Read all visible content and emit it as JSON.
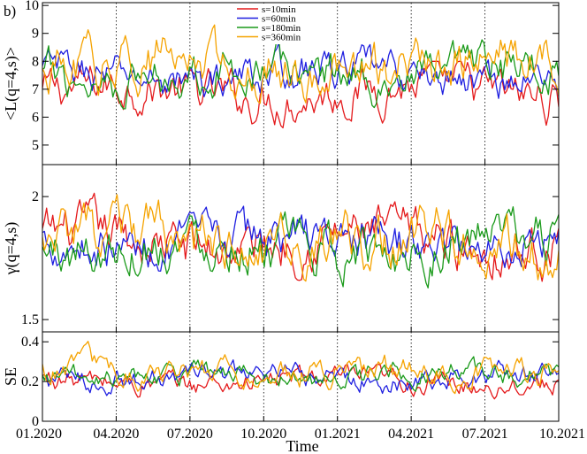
{
  "chart_data": {
    "type": "line",
    "panel_letter": "b)",
    "xlabel": "Time",
    "x_ticks": [
      "01.2020",
      "04.2020",
      "07.2020",
      "10.2020",
      "01.2021",
      "04.2021",
      "07.2021",
      "10.2021"
    ],
    "x_range_months": [
      0,
      21
    ],
    "vertical_markers_months": [
      3,
      6,
      9,
      12,
      15,
      18
    ],
    "legend": {
      "placement": "top-center",
      "entries": [
        {
          "label": "s=10min",
          "color": "#e41a1c"
        },
        {
          "label": "s=60min",
          "color": "#1f1fe0"
        },
        {
          "label": "s=180min",
          "color": "#1a9a1a"
        },
        {
          "label": "s=360min",
          "color": "#f5a300"
        }
      ]
    },
    "panels": [
      {
        "name": "L",
        "ylabel": "<L(q=4,s)>",
        "ylim": [
          4.3,
          10.1
        ],
        "yticks": [
          "5",
          "6",
          "7",
          "8",
          "9",
          "10"
        ],
        "ytick_values": [
          5,
          6,
          7,
          8,
          9,
          10
        ],
        "series_summary": [
          {
            "name": "s=10min",
            "mean": 6.9,
            "amp": 0.7,
            "min": 5.6,
            "max": 8.0
          },
          {
            "name": "s=60min",
            "mean": 7.5,
            "amp": 0.6,
            "min": 6.3,
            "max": 8.8
          },
          {
            "name": "s=180min",
            "mean": 7.6,
            "amp": 0.7,
            "min": 6.3,
            "max": 10.0
          },
          {
            "name": "s=360min",
            "mean": 7.8,
            "amp": 0.8,
            "min": 6.2,
            "max": 9.8
          }
        ]
      },
      {
        "name": "gamma",
        "ylabel": "γ(q=4,s)",
        "ylim": [
          1.45,
          2.13
        ],
        "yticks": [
          "1.5",
          "2"
        ],
        "ytick_values": [
          1.5,
          2.0
        ],
        "series_summary": [
          {
            "name": "s=10min",
            "mean": 1.82,
            "amp": 0.09,
            "min": 1.49,
            "max": 2.07
          },
          {
            "name": "s=60min",
            "mean": 1.82,
            "amp": 0.08,
            "min": 1.6,
            "max": 2.07
          },
          {
            "name": "s=180min",
            "mean": 1.8,
            "amp": 0.09,
            "min": 1.55,
            "max": 2.04
          },
          {
            "name": "s=360min",
            "mean": 1.81,
            "amp": 0.1,
            "min": 1.5,
            "max": 2.11
          }
        ]
      },
      {
        "name": "SE",
        "ylabel": "SE",
        "ylim": [
          0,
          0.45
        ],
        "yticks": [
          "0",
          "0.2",
          "0.4"
        ],
        "ytick_values": [
          0,
          0.2,
          0.4
        ],
        "series_summary": [
          {
            "name": "s=10min",
            "mean": 0.2,
            "amp": 0.05,
            "min": 0.09,
            "max": 0.33
          },
          {
            "name": "s=60min",
            "mean": 0.22,
            "amp": 0.05,
            "min": 0.1,
            "max": 0.36
          },
          {
            "name": "s=180min",
            "mean": 0.23,
            "amp": 0.05,
            "min": 0.11,
            "max": 0.42
          },
          {
            "name": "s=360min",
            "mean": 0.25,
            "amp": 0.06,
            "min": 0.1,
            "max": 0.42
          }
        ]
      }
    ]
  }
}
